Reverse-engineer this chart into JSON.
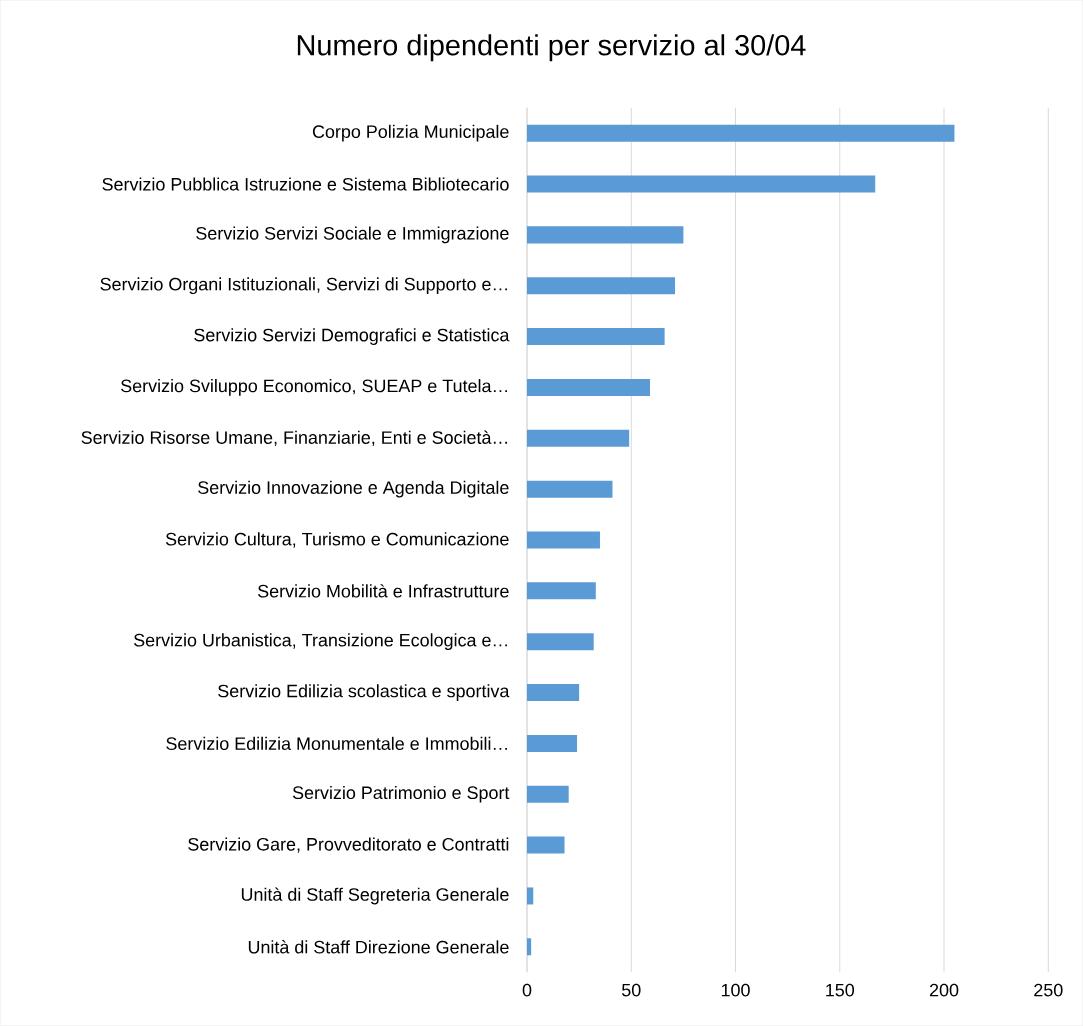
{
  "chart_data": {
    "type": "bar",
    "orientation": "horizontal",
    "title": "Numero dipendenti per servizio al 30/04",
    "categories": [
      "Corpo Polizia Municipale",
      "Servizio Pubblica Istruzione e Sistema Bibliotecario",
      "Servizio Servizi Sociale e Immigrazione",
      "Servizio Organi Istituzionali, Servizi di Supporto e…",
      "Servizio Servizi Demografici e Statistica",
      "Servizio Sviluppo Economico, SUEAP e Tutela…",
      "Servizio Risorse Umane, Finanziarie, Enti e Società…",
      "Servizio Innovazione e Agenda Digitale",
      "Servizio Cultura, Turismo e Comunicazione",
      "Servizio Mobilità e Infrastrutture",
      "Servizio Urbanistica, Transizione Ecologica e…",
      "Servizio Edilizia scolastica e sportiva",
      "Servizio Edilizia Monumentale e Immobili…",
      "Servizio Patrimonio e Sport",
      "Servizio Gare, Provveditorato e Contratti",
      "Unità di Staff Segreteria Generale",
      "Unità di Staff Direzione Generale"
    ],
    "values": [
      205,
      167,
      75,
      71,
      66,
      59,
      49,
      41,
      35,
      33,
      32,
      25,
      24,
      20,
      18,
      3,
      2
    ],
    "color": "#5b9bd5",
    "xlim": [
      0,
      250
    ],
    "xticks": [
      0,
      50,
      100,
      150,
      200,
      250
    ],
    "grid": "x"
  }
}
